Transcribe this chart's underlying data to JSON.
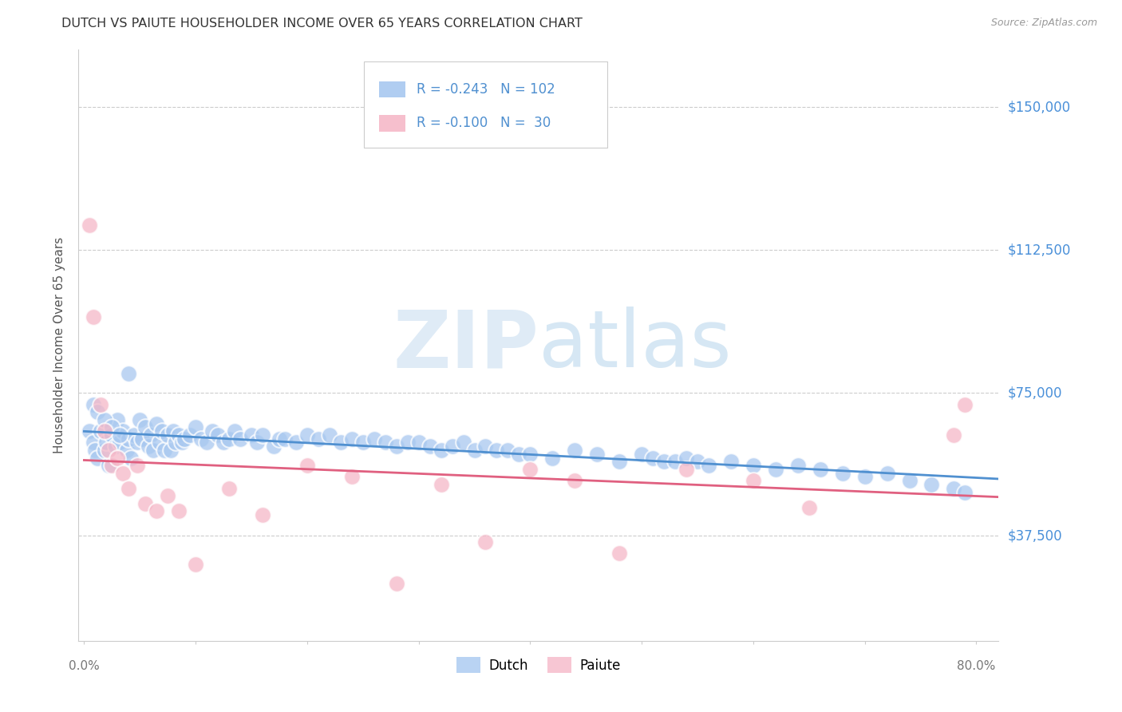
{
  "title": "DUTCH VS PAIUTE HOUSEHOLDER INCOME OVER 65 YEARS CORRELATION CHART",
  "source": "Source: ZipAtlas.com",
  "ylabel": "Householder Income Over 65 years",
  "y_tick_labels": [
    "$37,500",
    "$75,000",
    "$112,500",
    "$150,000"
  ],
  "y_tick_values": [
    37500,
    75000,
    112500,
    150000
  ],
  "y_min": 10000,
  "y_max": 165000,
  "x_min": -0.005,
  "x_max": 0.82,
  "dutch_R": -0.243,
  "dutch_N": 102,
  "paiute_R": -0.1,
  "paiute_N": 30,
  "dutch_color": "#A8C8F0",
  "paiute_color": "#F5B8C8",
  "dutch_line_color": "#5090D0",
  "paiute_line_color": "#E06080",
  "legend_dutch_label": "Dutch",
  "legend_paiute_label": "Paiute",
  "background_color": "#FFFFFF",
  "grid_color": "#CCCCCC",
  "watermark_color": "#C8DCF0",
  "title_color": "#333333",
  "source_color": "#999999",
  "axis_label_color": "#555555",
  "tick_label_color": "#4A90D9",
  "dutch_x": [
    0.005,
    0.008,
    0.01,
    0.012,
    0.015,
    0.018,
    0.02,
    0.022,
    0.025,
    0.028,
    0.03,
    0.032,
    0.035,
    0.038,
    0.04,
    0.042,
    0.045,
    0.048,
    0.05,
    0.052,
    0.055,
    0.058,
    0.06,
    0.062,
    0.065,
    0.068,
    0.07,
    0.072,
    0.075,
    0.078,
    0.08,
    0.082,
    0.085,
    0.088,
    0.09,
    0.095,
    0.1,
    0.105,
    0.11,
    0.115,
    0.12,
    0.125,
    0.13,
    0.135,
    0.14,
    0.15,
    0.155,
    0.16,
    0.17,
    0.175,
    0.18,
    0.19,
    0.2,
    0.21,
    0.22,
    0.23,
    0.24,
    0.25,
    0.26,
    0.27,
    0.28,
    0.29,
    0.3,
    0.31,
    0.32,
    0.33,
    0.34,
    0.35,
    0.36,
    0.37,
    0.38,
    0.39,
    0.4,
    0.42,
    0.44,
    0.46,
    0.48,
    0.5,
    0.51,
    0.52,
    0.53,
    0.54,
    0.55,
    0.56,
    0.58,
    0.6,
    0.62,
    0.64,
    0.66,
    0.68,
    0.7,
    0.72,
    0.74,
    0.76,
    0.78,
    0.79,
    0.008,
    0.012,
    0.018,
    0.025,
    0.032,
    0.04
  ],
  "dutch_y": [
    65000,
    62000,
    60000,
    58000,
    65000,
    60000,
    62000,
    56000,
    64000,
    61000,
    68000,
    62000,
    65000,
    60000,
    63000,
    58000,
    64000,
    62000,
    68000,
    63000,
    66000,
    61000,
    64000,
    60000,
    67000,
    62000,
    65000,
    60000,
    64000,
    60000,
    65000,
    62000,
    64000,
    62000,
    63000,
    64000,
    66000,
    63000,
    62000,
    65000,
    64000,
    62000,
    63000,
    65000,
    63000,
    64000,
    62000,
    64000,
    61000,
    63000,
    63000,
    62000,
    64000,
    63000,
    64000,
    62000,
    63000,
    62000,
    63000,
    62000,
    61000,
    62000,
    62000,
    61000,
    60000,
    61000,
    62000,
    60000,
    61000,
    60000,
    60000,
    59000,
    59000,
    58000,
    60000,
    59000,
    57000,
    59000,
    58000,
    57000,
    57000,
    58000,
    57000,
    56000,
    57000,
    56000,
    55000,
    56000,
    55000,
    54000,
    53000,
    54000,
    52000,
    51000,
    50000,
    49000,
    72000,
    70000,
    68000,
    66000,
    64000,
    80000
  ],
  "paiute_x": [
    0.005,
    0.008,
    0.015,
    0.018,
    0.022,
    0.025,
    0.03,
    0.035,
    0.04,
    0.048,
    0.055,
    0.065,
    0.075,
    0.085,
    0.1,
    0.13,
    0.16,
    0.2,
    0.24,
    0.28,
    0.32,
    0.36,
    0.4,
    0.44,
    0.48,
    0.54,
    0.6,
    0.65,
    0.78,
    0.79
  ],
  "paiute_y": [
    119000,
    95000,
    72000,
    65000,
    60000,
    56000,
    58000,
    54000,
    50000,
    56000,
    46000,
    44000,
    48000,
    44000,
    30000,
    50000,
    43000,
    56000,
    53000,
    25000,
    51000,
    36000,
    55000,
    52000,
    33000,
    55000,
    52000,
    45000,
    64000,
    72000
  ]
}
